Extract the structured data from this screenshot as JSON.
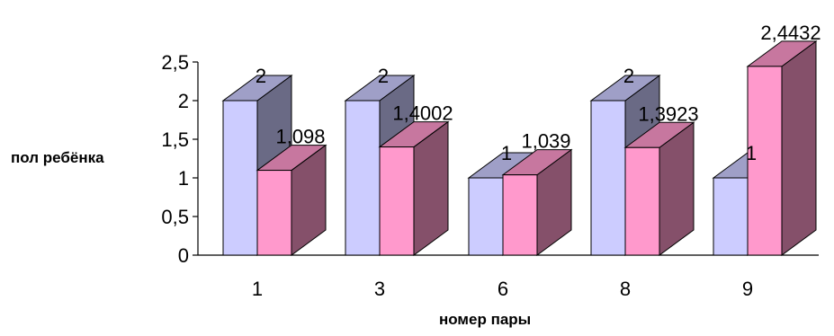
{
  "chart_data": {
    "type": "bar",
    "style": "3d-clustered-column",
    "categories": [
      "1",
      "3",
      "6",
      "8",
      "9"
    ],
    "series": [
      {
        "values": [
          2,
          2,
          1,
          2,
          1
        ],
        "labels": [
          "2",
          "2",
          "1",
          "2",
          "1"
        ],
        "color": "#ccccff"
      },
      {
        "values": [
          1.098,
          1.4002,
          1.039,
          1.3923,
          2.4432
        ],
        "labels": [
          "1,098",
          "1,4002",
          "1,039",
          "1,3923",
          "2,4432"
        ],
        "color": "#ff99cc"
      }
    ],
    "yticks": [
      "0",
      "0,5",
      "1",
      "1,5",
      "2",
      "2,5"
    ],
    "ylim": [
      0,
      2.5
    ],
    "xlabel": "номер пары",
    "ylabel": "пол ребёнка",
    "grid": false,
    "legend": "none"
  }
}
